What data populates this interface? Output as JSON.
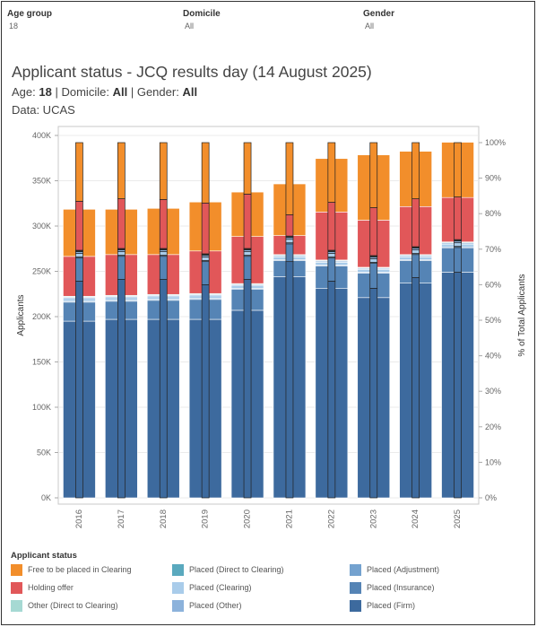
{
  "filters": [
    {
      "label": "Age group",
      "value": "18"
    },
    {
      "label": "Domicile",
      "value": "All"
    },
    {
      "label": "Gender",
      "value": "All"
    }
  ],
  "header": {
    "title": "Applicant status - JCQ results day (14 August 2025)",
    "age_label": "Age:",
    "age_value": "18",
    "domicile_label": "Domicile:",
    "domicile_value": "All",
    "gender_label": "Gender:",
    "gender_value": "All",
    "separator": "|",
    "source": "Data: UCAS"
  },
  "legend": {
    "title": "Applicant status",
    "items": [
      {
        "label": "Free to be placed in Clearing",
        "color": "#F28E2B"
      },
      {
        "label": "Placed (Direct to Clearing)",
        "color": "#5AA9BE"
      },
      {
        "label": "Placed (Adjustment)",
        "color": "#74A2CF"
      },
      {
        "label": "Holding offer",
        "color": "#E15759"
      },
      {
        "label": "Placed (Clearing)",
        "color": "#A9CCEA"
      },
      {
        "label": "Placed (Insurance)",
        "color": "#5584B5"
      },
      {
        "label": "Other (Direct to Clearing)",
        "color": "#A6D9D3"
      },
      {
        "label": "Placed (Other)",
        "color": "#8CB2DB"
      },
      {
        "label": "Placed (Firm)",
        "color": "#3D6A9E"
      }
    ]
  },
  "chart_data": {
    "type": "bar",
    "stacked": true,
    "categories": [
      "2016",
      "2017",
      "2018",
      "2019",
      "2020",
      "2021",
      "2022",
      "2023",
      "2024",
      "2025"
    ],
    "ylabel": "Applicants",
    "y2label": "% of Total Applicants",
    "ylim": [
      0,
      400000
    ],
    "y2lim": [
      0,
      100
    ],
    "yticks": [
      "0K",
      "50K",
      "100K",
      "150K",
      "200K",
      "250K",
      "300K",
      "350K",
      "400K"
    ],
    "y2ticks": [
      "0%",
      "10%",
      "20%",
      "30%",
      "40%",
      "50%",
      "60%",
      "70%",
      "80%",
      "90%",
      "100%"
    ],
    "grid": true,
    "series": [
      {
        "name": "Placed (Firm)",
        "color": "#3D6A9E",
        "values": [
          195000,
          197000,
          197000,
          197000,
          207000,
          244000,
          231000,
          221000,
          237000,
          249000
        ],
        "pct": [
          61,
          61.5,
          61.5,
          60,
          61.5,
          66.5,
          61,
          59,
          62,
          63.5
        ]
      },
      {
        "name": "Placed (Insurance)",
        "color": "#5584B5",
        "values": [
          21000,
          20000,
          21000,
          22000,
          23000,
          18000,
          25000,
          27000,
          25000,
          27000
        ],
        "pct": [
          6.5,
          6.5,
          6.5,
          6.5,
          6.5,
          5,
          6.5,
          7,
          6.5,
          7
        ]
      },
      {
        "name": "Placed (Adjustment)",
        "color": "#74A2CF",
        "values": [
          1000,
          1000,
          1000,
          1000,
          1000,
          1000,
          1000,
          1000,
          1000,
          1000
        ],
        "pct": [
          0.3,
          0.3,
          0.3,
          0.3,
          0.3,
          0.3,
          0.3,
          0.3,
          0.3,
          0.3
        ]
      },
      {
        "name": "Placed (Clearing)",
        "color": "#A9CCEA",
        "values": [
          3000,
          3000,
          3000,
          3000,
          3000,
          3000,
          3000,
          3000,
          3000,
          3000
        ],
        "pct": [
          1,
          1,
          1,
          1,
          1,
          1,
          1,
          1,
          1,
          1
        ]
      },
      {
        "name": "Placed (Other)",
        "color": "#8CB2DB",
        "values": [
          1500,
          1500,
          1500,
          1500,
          1500,
          1500,
          1500,
          1500,
          1500,
          1500
        ],
        "pct": [
          0.5,
          0.5,
          0.5,
          0.5,
          0.5,
          0.5,
          0.5,
          0.5,
          0.5,
          0.5
        ]
      },
      {
        "name": "Placed (Direct to Clearing)",
        "color": "#5AA9BE",
        "values": [
          500,
          500,
          500,
          500,
          500,
          500,
          500,
          500,
          500,
          500
        ],
        "pct": [
          0.2,
          0.2,
          0.2,
          0.2,
          0.2,
          0.2,
          0.2,
          0.2,
          0.2,
          0.2
        ]
      },
      {
        "name": "Other (Direct to Clearing)",
        "color": "#A6D9D3",
        "values": [
          500,
          500,
          500,
          500,
          500,
          500,
          500,
          500,
          500,
          500
        ],
        "pct": [
          0.2,
          0.2,
          0.2,
          0.2,
          0.2,
          0.2,
          0.2,
          0.2,
          0.2,
          0.2
        ]
      },
      {
        "name": "Holding offer",
        "color": "#E15759",
        "values": [
          44000,
          45000,
          44000,
          47000,
          52000,
          21000,
          53000,
          52000,
          53000,
          49000
        ],
        "pct": [
          13.8,
          14,
          13.8,
          14.3,
          15.3,
          6,
          13.5,
          13.5,
          13.5,
          12
        ]
      },
      {
        "name": "Free to be placed in Clearing",
        "color": "#F28E2B",
        "values": [
          52000,
          50000,
          51000,
          54000,
          49000,
          57000,
          59000,
          72000,
          61000,
          61000
        ]
      }
    ]
  }
}
